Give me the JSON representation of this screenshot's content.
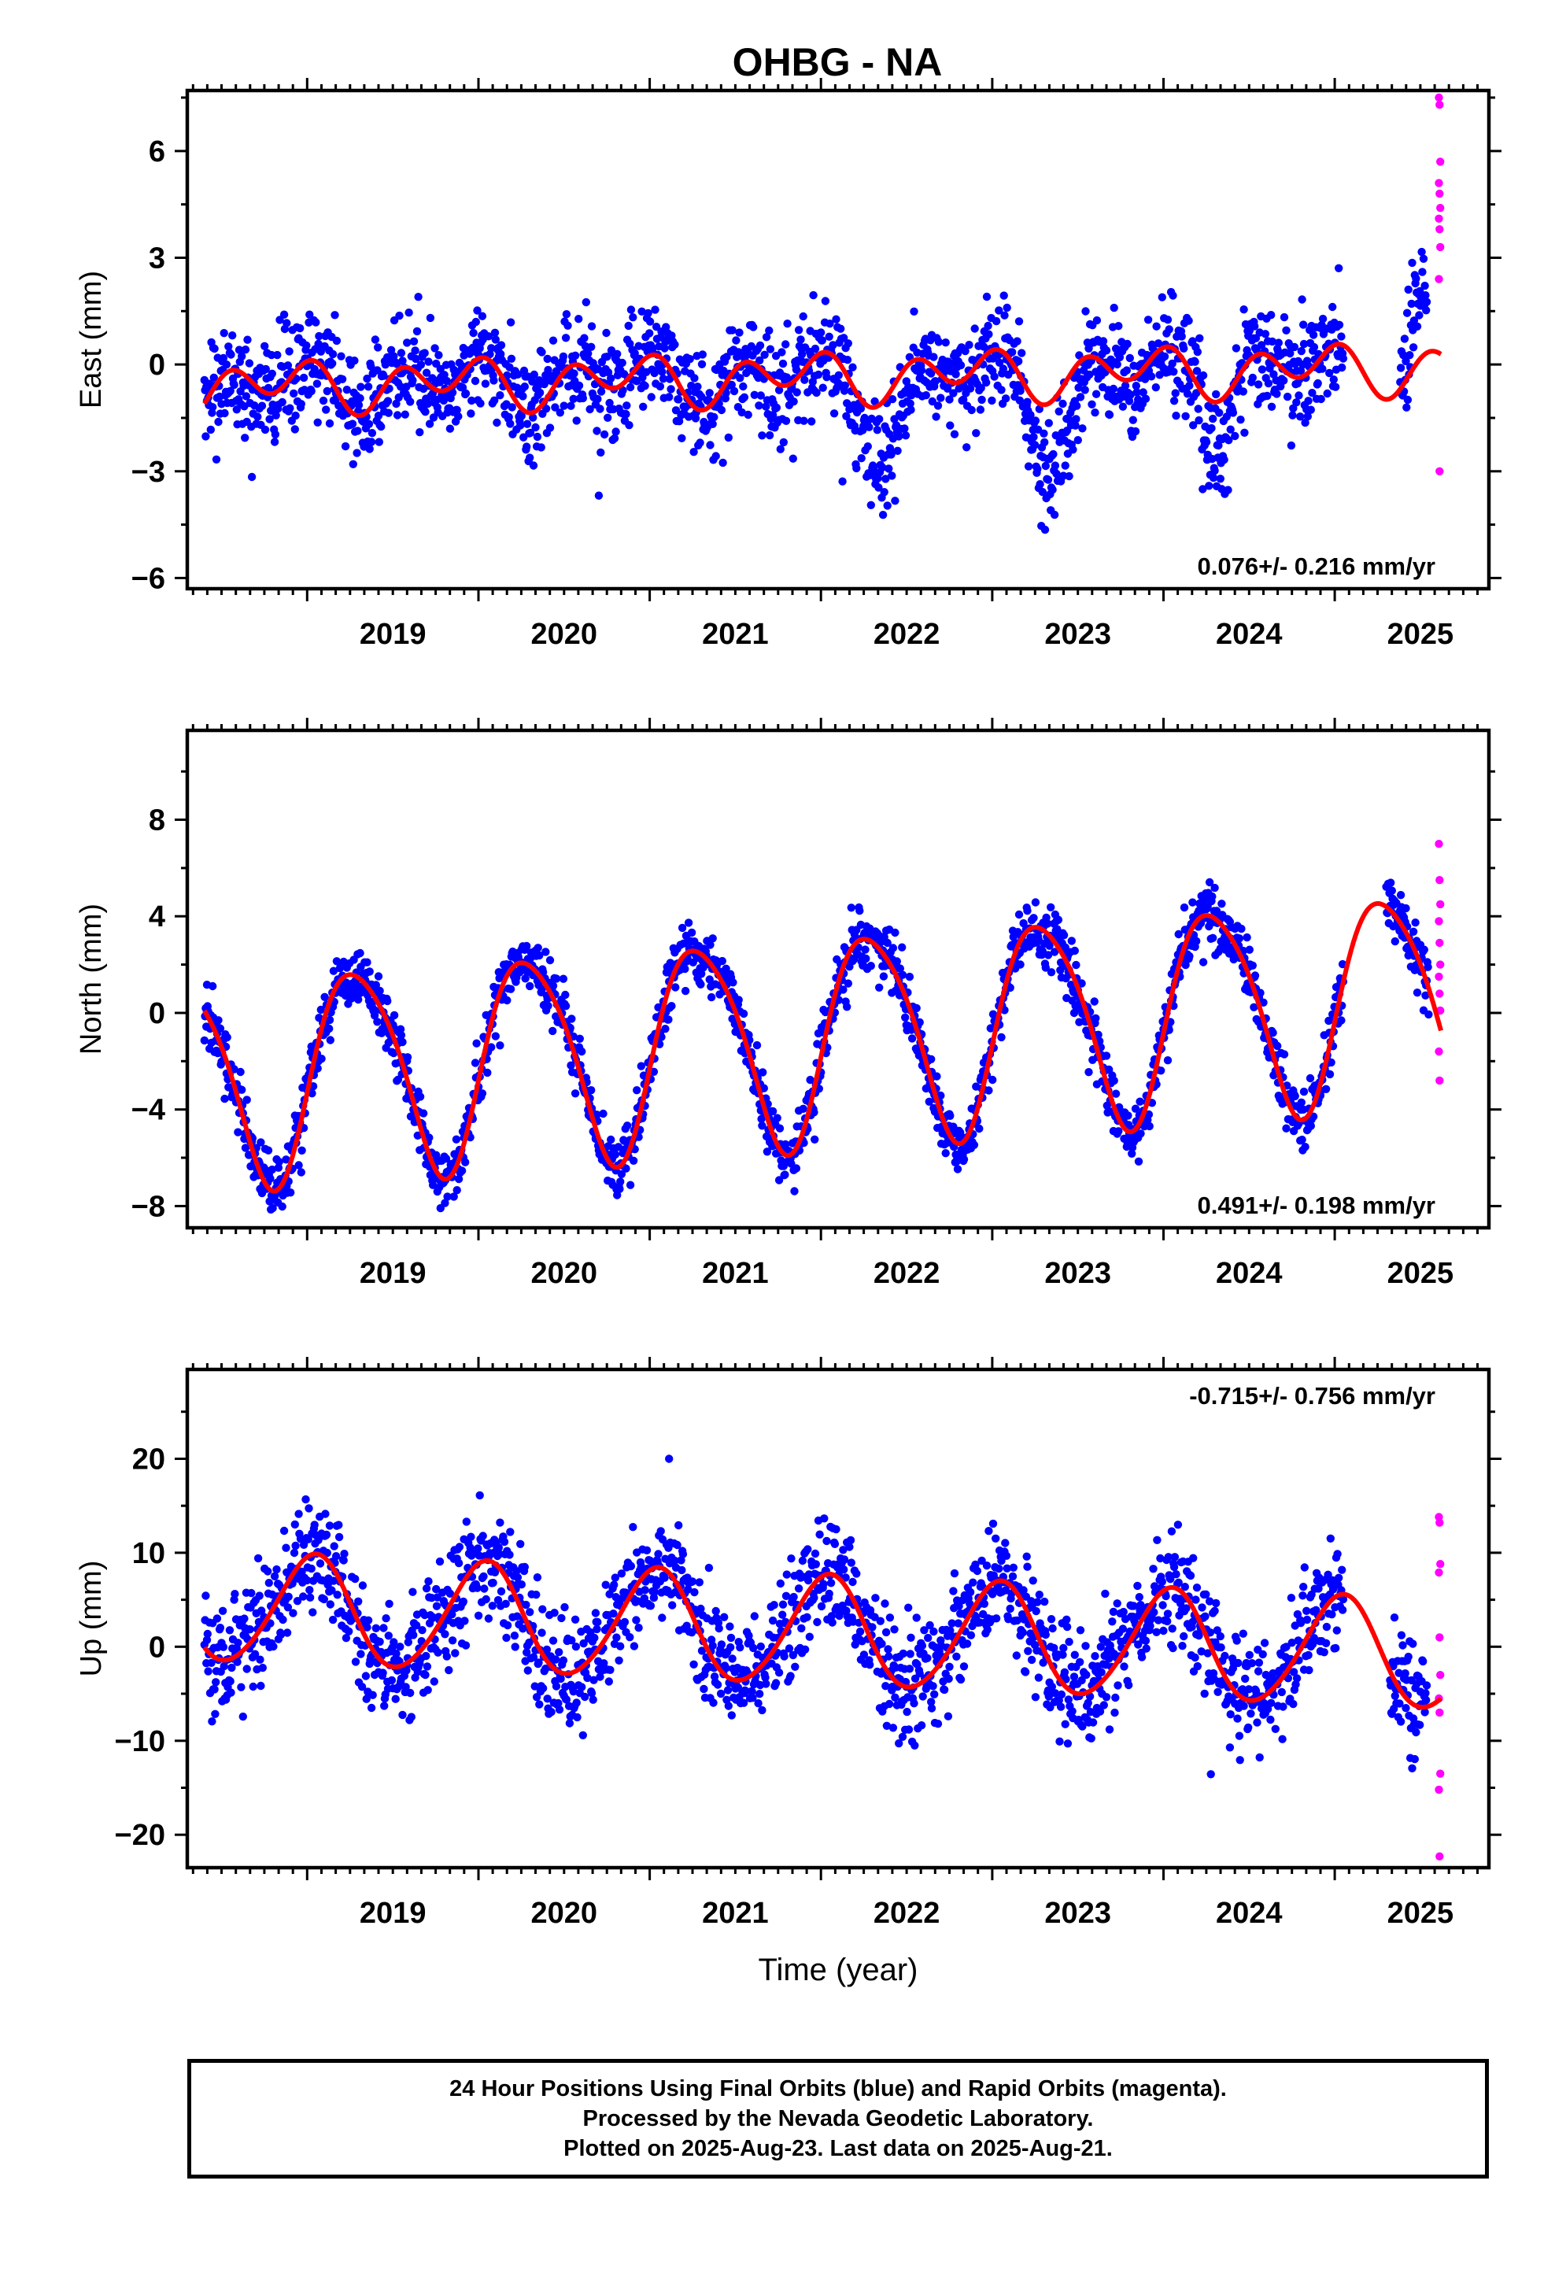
{
  "title": "OHBG - NA",
  "colors": {
    "final": "#0000ff",
    "rapid": "#ff00ff",
    "model": "#ff0000",
    "axis": "#000000"
  },
  "chart_data": [
    {
      "type": "scatter",
      "title": "OHBG - NA",
      "ylabel": "East (mm)",
      "xlabel": "",
      "xlim": [
        2018.3,
        2025.9
      ],
      "ylim": [
        -6.3,
        7.7
      ],
      "yticks": [
        6,
        3,
        0,
        -3,
        -6
      ],
      "ytick_labels": [
        "6",
        "3",
        "0",
        "−3",
        "−6"
      ],
      "xticks": [
        2019,
        2020,
        2021,
        2022,
        2023,
        2024,
        2025
      ],
      "xtick_labels": [
        "2019",
        "2020",
        "2021",
        "2022",
        "2023",
        "2024",
        "2025"
      ],
      "rate_label": "0.076+/- 0.216 mm/yr",
      "rate_position": "bottom-right",
      "data_start": 2018.4,
      "data_end": 2025.62,
      "final_end": 2025.54,
      "model": {
        "offset": -0.35,
        "rate": 0.076,
        "annual_amp": 0.35,
        "annual_phase": 2.5,
        "semiannual_amp": 0.55,
        "semiannual_phase": 1.0
      },
      "gaps": [
        [
          2025.05,
          2025.38
        ]
      ],
      "scatter": 1.05,
      "anomalies": [
        {
          "t0": 2022.15,
          "t1": 2022.6,
          "dy": -1.6
        },
        {
          "t0": 2023.15,
          "t1": 2023.55,
          "dy": -2.1
        },
        {
          "t0": 2024.2,
          "t1": 2024.45,
          "dy": -1.4
        },
        {
          "t0": 2025.4,
          "t1": 2025.62,
          "dy": 2.2
        }
      ],
      "rapid": [
        7.5,
        7.3,
        5.7,
        5.1,
        4.8,
        4.4,
        4.1,
        3.8,
        3.3,
        2.4,
        -3.0
      ],
      "seed": 11
    },
    {
      "type": "scatter",
      "ylabel": "North (mm)",
      "xlabel": "",
      "xlim": [
        2018.3,
        2025.9
      ],
      "ylim": [
        -8.9,
        11.7
      ],
      "yticks": [
        8,
        4,
        0,
        -4,
        -8
      ],
      "ytick_labels": [
        "8",
        "4",
        "0",
        "−4",
        "−8"
      ],
      "xticks": [
        2019,
        2020,
        2021,
        2022,
        2023,
        2024,
        2025
      ],
      "xtick_labels": [
        "2019",
        "2020",
        "2021",
        "2022",
        "2023",
        "2024",
        "2025"
      ],
      "rate_label": "0.491+/- 0.198 mm/yr",
      "rate_position": "bottom-right",
      "data_start": 2018.4,
      "data_end": 2025.62,
      "final_end": 2025.55,
      "model": {
        "offset": -1.0,
        "rate": 0.491,
        "annual_amp": 4.3,
        "annual_phase": -0.25,
        "semiannual_amp": 0.6,
        "semiannual_phase": 0.4
      },
      "gaps": [
        [
          2025.05,
          2025.3
        ]
      ],
      "scatter": 0.9,
      "anomalies": [],
      "rapid": [
        7.0,
        5.5,
        4.5,
        3.8,
        2.9,
        2.0,
        1.5,
        0.8,
        0.1,
        -1.6,
        -2.8
      ],
      "seed": 23
    },
    {
      "type": "scatter",
      "ylabel": "Up (mm)",
      "xlabel": "Time (year)",
      "xlim": [
        2018.3,
        2025.9
      ],
      "ylim": [
        -23.5,
        29.5
      ],
      "yticks": [
        20,
        10,
        0,
        -10,
        -20
      ],
      "ytick_labels": [
        "20",
        "10",
        "0",
        "−10",
        "−20"
      ],
      "xticks": [
        2019,
        2020,
        2021,
        2022,
        2023,
        2024,
        2025
      ],
      "xtick_labels": [
        "2019",
        "2020",
        "2021",
        "2022",
        "2023",
        "2024",
        "2025"
      ],
      "rate_label": "-0.715+/- 0.756 mm/yr",
      "rate_position": "top-right",
      "data_start": 2018.4,
      "data_end": 2025.62,
      "final_end": 2025.54,
      "model": {
        "offset": 1.6,
        "rate": -0.715,
        "annual_amp": 5.8,
        "annual_phase": 1.35,
        "semiannual_amp": 0.5,
        "semiannual_phase": 0.3
      },
      "gaps": [
        [
          2025.05,
          2025.32
        ]
      ],
      "scatter": 4.2,
      "anomalies": [],
      "rapid": [
        13.8,
        13.2,
        8.8,
        7.9,
        1.0,
        -3.0,
        -5.5,
        -7.0,
        -13.5,
        -15.2,
        -22.3
      ],
      "seed": 37
    }
  ],
  "footer": {
    "line1": "24 Hour Positions Using Final Orbits (blue) and Rapid Orbits (magenta).",
    "line2": "Processed by the Nevada Geodetic Laboratory.",
    "line3": "Plotted on 2025-Aug-23. Last data on 2025-Aug-21."
  }
}
